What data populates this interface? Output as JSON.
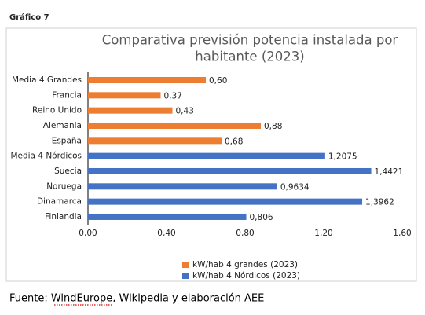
{
  "figure_label": "Gráfico 7",
  "source": "Fuente: WindEurope, Wikipedia y elaboración AEE",
  "chart_data": {
    "type": "bar",
    "orientation": "horizontal",
    "title": [
      "Comparativa previsión potencia instalada por",
      "habitante (2023)"
    ],
    "categories": [
      "Media 4 Grandes",
      "Francia",
      "Reino Unido",
      "Alemania",
      "España",
      "Media 4 Nórdicos",
      "Suecia",
      "Noruega",
      "Dinamarca",
      "Finlandia"
    ],
    "series": [
      {
        "name": "kW/hab 4 grandes (2023)",
        "color": "#ed7d31",
        "values": [
          0.6,
          0.37,
          0.43,
          0.88,
          0.68,
          null,
          null,
          null,
          null,
          null
        ],
        "value_labels": [
          "0,60",
          "0,37",
          "0,43",
          "0,88",
          "0,68",
          null,
          null,
          null,
          null,
          null
        ]
      },
      {
        "name": "kW/hab 4 Nórdicos (2023)",
        "color": "#4472c4",
        "values": [
          null,
          null,
          null,
          null,
          null,
          1.2075,
          1.4421,
          0.9634,
          1.3962,
          0.806
        ],
        "value_labels": [
          null,
          null,
          null,
          null,
          null,
          "1,2075",
          "1,4421",
          "0,9634",
          "1,3962",
          "0,806"
        ]
      }
    ],
    "xlim": [
      0,
      1.6
    ],
    "xticks": [
      {
        "value": 0,
        "label": "0,00"
      },
      {
        "value": 0.4,
        "label": "0,40"
      },
      {
        "value": 0.8,
        "label": "0,80"
      },
      {
        "value": 1.2,
        "label": "1,20"
      },
      {
        "value": 1.6,
        "label": "1,60"
      }
    ],
    "grid": false,
    "legend": "bottom"
  }
}
